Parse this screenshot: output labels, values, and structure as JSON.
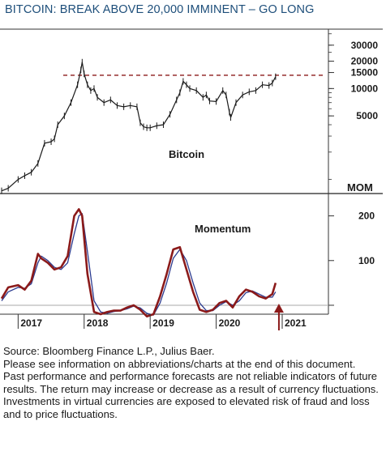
{
  "title": "BITCOIN: BREAK ABOVE 20,000 IMMINENT – GO LONG",
  "colors": {
    "title": "#1d4e7a",
    "price": "#1a1a1a",
    "resistance": "#8b1a1a",
    "momentum": "#8b1a1a",
    "signal": "#2b3a8f",
    "zero_line": "#aaaaaa",
    "arrow": "#8b1a1a",
    "footer_bg": "#eef0f3"
  },
  "footer": {
    "source": "Source: Bloomberg Finance L.P., Julius Baer.",
    "note": "Please see information on abbreviations/charts at the end of this document.",
    "disclaimer1": "Past performance and performance forecasts are not reliable indicators of future results. The return may increase or decrease as a result of currency fluctuations.",
    "disclaimer2": "Investments in virtual currencies are exposed to elevated risk of fraud and loss and to price fluctuations."
  },
  "chart_data": [
    {
      "type": "line",
      "name": "Bitcoin",
      "label": "Bitcoin",
      "scale": "log",
      "y_ticks": [
        {
          "value": 30000,
          "label": "30000"
        },
        {
          "value": 20000,
          "label": "20000"
        },
        {
          "value": 15000,
          "label": "15000"
        },
        {
          "value": 10000,
          "label": "10000"
        },
        {
          "value": 5000,
          "label": "5000"
        }
      ],
      "ylim": [
        700,
        45000
      ],
      "resistance_level": 14000,
      "x": [
        2016.75,
        2016.85,
        2017.0,
        2017.1,
        2017.2,
        2017.3,
        2017.4,
        2017.5,
        2017.55,
        2017.6,
        2017.7,
        2017.8,
        2017.9,
        2017.95,
        2017.97,
        2018.0,
        2018.05,
        2018.1,
        2018.15,
        2018.2,
        2018.3,
        2018.4,
        2018.5,
        2018.6,
        2018.7,
        2018.8,
        2018.85,
        2018.9,
        2018.95,
        2019.0,
        2019.1,
        2019.2,
        2019.3,
        2019.4,
        2019.45,
        2019.5,
        2019.55,
        2019.6,
        2019.7,
        2019.8,
        2019.85,
        2019.9,
        2020.0,
        2020.1,
        2020.15,
        2020.2,
        2020.22,
        2020.3,
        2020.4,
        2020.5,
        2020.6,
        2020.7,
        2020.8,
        2020.85,
        2020.9
      ],
      "values": [
        750,
        800,
        1000,
        1100,
        1200,
        1500,
        2500,
        2600,
        2800,
        4000,
        5000,
        7000,
        11000,
        16000,
        19500,
        14500,
        11000,
        9500,
        10000,
        8000,
        7000,
        7500,
        6500,
        6300,
        6500,
        6300,
        4200,
        3800,
        3700,
        3700,
        3900,
        4000,
        5200,
        7500,
        9000,
        12000,
        11000,
        10000,
        9500,
        8000,
        8500,
        7300,
        7200,
        9500,
        8500,
        5500,
        4800,
        7000,
        8500,
        9200,
        9500,
        11000,
        10800,
        11500,
        13500
      ],
      "ylabel": ""
    },
    {
      "type": "line",
      "name": "MOM",
      "label": "Momentum",
      "y_ticks": [
        {
          "value": 200,
          "label": "200"
        },
        {
          "value": 100,
          "label": "100"
        }
      ],
      "ylim": [
        -20,
        250
      ],
      "zero_line": 0,
      "x": [
        2016.75,
        2016.85,
        2017.0,
        2017.1,
        2017.2,
        2017.3,
        2017.35,
        2017.45,
        2017.55,
        2017.65,
        2017.75,
        2017.85,
        2017.92,
        2017.97,
        2018.05,
        2018.15,
        2018.25,
        2018.35,
        2018.45,
        2018.55,
        2018.65,
        2018.75,
        2018.85,
        2018.95,
        2019.05,
        2019.15,
        2019.25,
        2019.35,
        2019.45,
        2019.55,
        2019.65,
        2019.75,
        2019.85,
        2019.95,
        2020.05,
        2020.15,
        2020.25,
        2020.35,
        2020.45,
        2020.55,
        2020.65,
        2020.75,
        2020.85,
        2020.9
      ],
      "values": [
        15,
        40,
        45,
        35,
        55,
        115,
        105,
        95,
        80,
        85,
        110,
        200,
        215,
        200,
        70,
        -15,
        -20,
        -15,
        -12,
        -12,
        -5,
        0,
        -10,
        -25,
        -20,
        20,
        70,
        125,
        130,
        80,
        30,
        -10,
        -15,
        -10,
        5,
        10,
        -5,
        20,
        35,
        30,
        20,
        15,
        25,
        50
      ],
      "signal_values": [
        10,
        30,
        40,
        38,
        48,
        95,
        110,
        100,
        85,
        80,
        95,
        160,
        200,
        205,
        120,
        10,
        -15,
        -18,
        -14,
        -12,
        -8,
        -2,
        -6,
        -18,
        -22,
        5,
        50,
        105,
        125,
        100,
        50,
        5,
        -12,
        -12,
        0,
        8,
        0,
        10,
        28,
        32,
        25,
        18,
        18,
        30
      ],
      "ylabel": "MOM"
    }
  ],
  "x_axis": {
    "labels": [
      "2017",
      "2018",
      "2019",
      "2020",
      "2021"
    ],
    "positions": [
      2017.0,
      2018.0,
      2019.0,
      2020.0,
      2021.0
    ],
    "range": [
      2016.75,
      2021.7
    ],
    "arrow_at": 2020.95
  },
  "panel_labels": {
    "price": "Bitcoin",
    "momentum": "Momentum",
    "mom_axis": "MOM"
  }
}
